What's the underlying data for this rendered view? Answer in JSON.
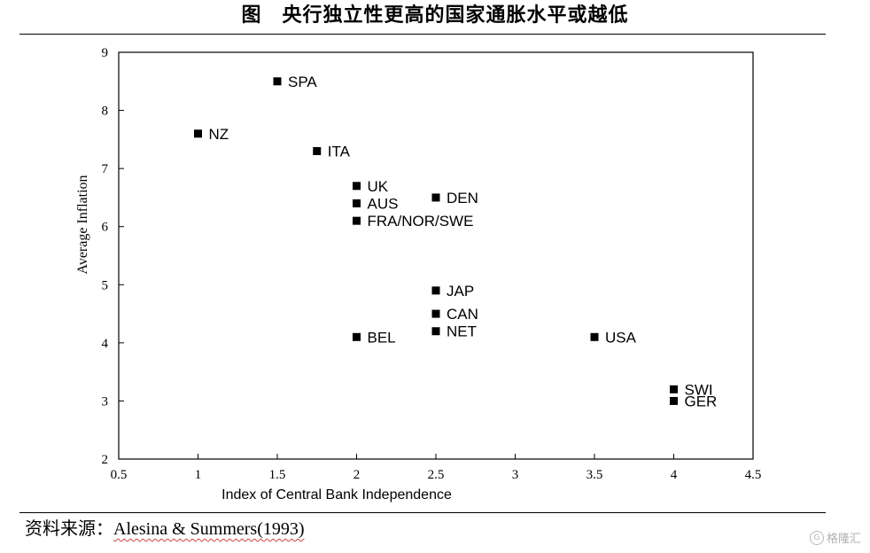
{
  "page": {
    "title": "图　央行独立性更高的国家通胀水平或越低",
    "source_label": "资料来源：",
    "source_citation": "Alesina & Summers(1993)",
    "watermark_logo": "G",
    "watermark_text": "格隆汇"
  },
  "chart_data": {
    "type": "scatter",
    "title": "",
    "xlabel": "Index of Central Bank Independence",
    "ylabel": "Average Inflation",
    "xlim": [
      0.5,
      4.5
    ],
    "ylim": [
      2,
      9
    ],
    "x_ticks": [
      0.5,
      1,
      1.5,
      2,
      2.5,
      3,
      3.5,
      4,
      4.5
    ],
    "x_tick_labels": [
      "0.5",
      "1",
      "1.5",
      "2",
      "2.5",
      "3",
      "3.5",
      "4",
      "4.5"
    ],
    "y_ticks": [
      2,
      3,
      4,
      5,
      6,
      7,
      8,
      9
    ],
    "y_tick_labels": [
      "2",
      "3",
      "4",
      "5",
      "6",
      "7",
      "8",
      "9"
    ],
    "grid": false,
    "marker": "square",
    "marker_color": "#000000",
    "points": [
      {
        "label": "SPA",
        "x": 1.5,
        "y": 8.5
      },
      {
        "label": "NZ",
        "x": 1.0,
        "y": 7.6
      },
      {
        "label": "ITA",
        "x": 1.75,
        "y": 7.3
      },
      {
        "label": "UK",
        "x": 2.0,
        "y": 6.7
      },
      {
        "label": "AUS",
        "x": 2.0,
        "y": 6.4
      },
      {
        "label": "FRA/NOR/SWE",
        "x": 2.0,
        "y": 6.1
      },
      {
        "label": "DEN",
        "x": 2.5,
        "y": 6.5
      },
      {
        "label": "JAP",
        "x": 2.5,
        "y": 4.9
      },
      {
        "label": "CAN",
        "x": 2.5,
        "y": 4.5
      },
      {
        "label": "NET",
        "x": 2.5,
        "y": 4.2
      },
      {
        "label": "BEL",
        "x": 2.0,
        "y": 4.1
      },
      {
        "label": "USA",
        "x": 3.5,
        "y": 4.1
      },
      {
        "label": "SWI",
        "x": 4.0,
        "y": 3.2
      },
      {
        "label": "GER",
        "x": 4.0,
        "y": 3.0
      }
    ]
  }
}
